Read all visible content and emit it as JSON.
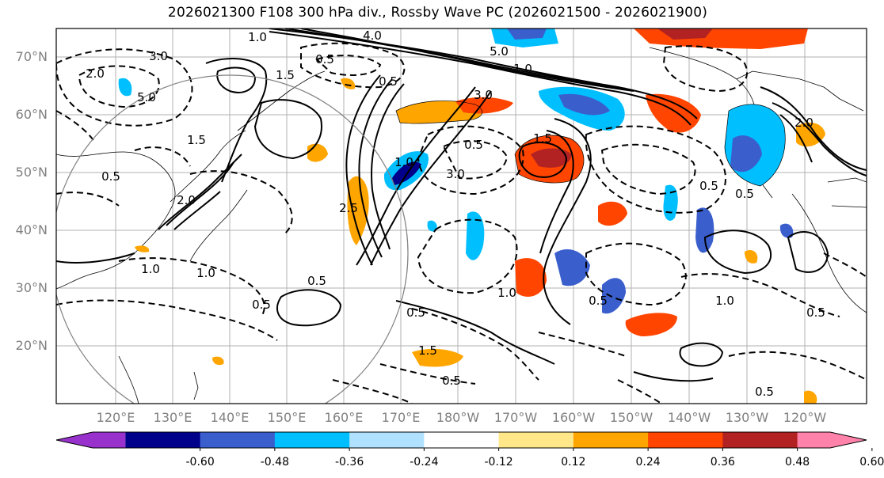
{
  "title": "2026021300 F108 300 hPa div., Rossby Wave PC (2026021500 - 2026021900)",
  "map": {
    "lat_labels": [
      "70°N",
      "60°N",
      "50°N",
      "40°N",
      "30°N",
      "20°N"
    ],
    "lon_labels": [
      "120°E",
      "130°E",
      "140°E",
      "150°E",
      "160°E",
      "170°E",
      "180°W",
      "170°W",
      "160°W",
      "150°W",
      "140°W",
      "130°W",
      "120°W"
    ],
    "contour_labels": [
      "1.0",
      "4.0",
      "3.0",
      "5.0",
      "1.5",
      "0.5",
      "2.0",
      "5.0",
      "0.5",
      "1.0",
      "3.0",
      "1.5",
      "0.5",
      "2.0",
      "1.0",
      "3.0",
      "0.5",
      "1.5",
      "2.5",
      "0.5",
      "1.0",
      "1.0",
      "0.5",
      "1.0",
      "0.5",
      "0.5",
      "1.5",
      "0.5",
      "0.5",
      "0.5",
      "1.0",
      "0.5",
      "2.0",
      "0.5"
    ]
  },
  "colorbar": {
    "levels": [
      "-0.60",
      "-0.48",
      "-0.36",
      "-0.24",
      "-0.12",
      "0.12",
      "0.24",
      "0.36",
      "0.48",
      "0.60"
    ],
    "colors": [
      "#9932cc",
      "#00008b",
      "#3a5fcd",
      "#00bfff",
      "#b0e2ff",
      "#ffffff",
      "#ffe78a",
      "#ffa500",
      "#ff4500",
      "#b22222",
      "#ff82ab"
    ]
  }
}
